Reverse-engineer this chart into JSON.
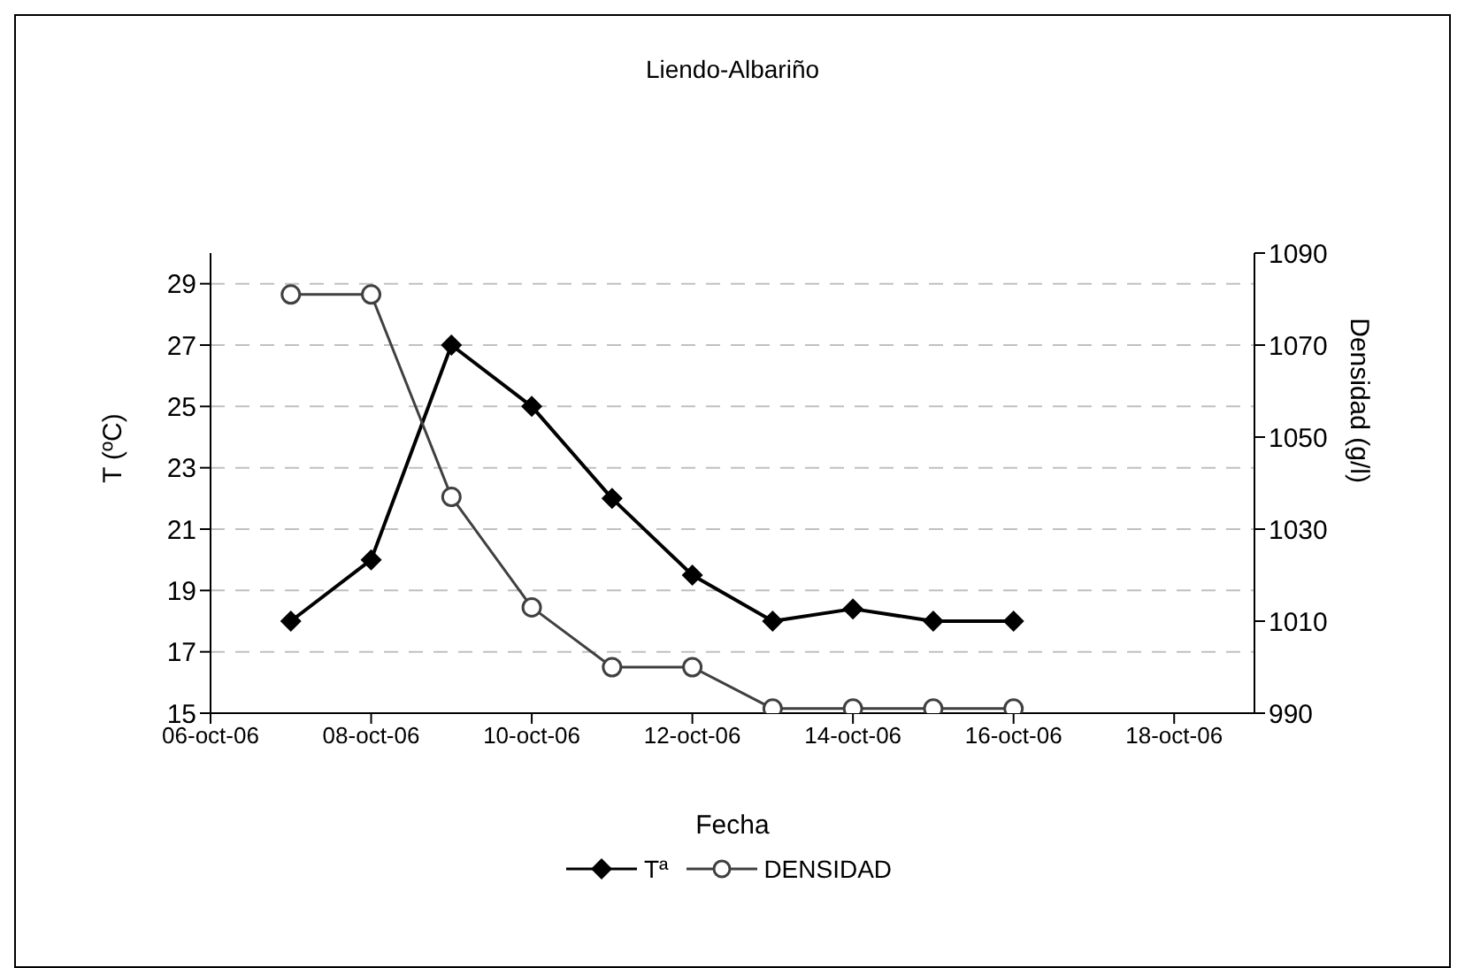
{
  "chart_data": {
    "type": "line",
    "title": "Liendo-Albariño",
    "xlabel": "Fecha",
    "ylabel": "T (ºC)",
    "y2label": "Densidad (g/l)",
    "x": [
      "--10-07",
      "--10-08",
      "--10-09",
      "--10-10",
      "--10-11",
      "--10-12",
      "--10-13",
      "--10-14",
      "--10-15",
      "--10-16"
    ],
    "xlim": [
      "--10-06",
      "--10-19"
    ],
    "xticks": [
      {
        "value": "--10-06",
        "label": "06-oct-06"
      },
      {
        "value": "--10-08",
        "label": "08-oct-06"
      },
      {
        "value": "--10-10",
        "label": "10-oct-06"
      },
      {
        "value": "--10-12",
        "label": "12-oct-06"
      },
      {
        "value": "--10-14",
        "label": "14-oct-06"
      },
      {
        "value": "--10-16",
        "label": "16-oct-06"
      },
      {
        "value": "--10-18",
        "label": "18-oct-06"
      }
    ],
    "ylim": [
      15,
      30
    ],
    "yticks": [
      15,
      17,
      19,
      21,
      23,
      25,
      27,
      29
    ],
    "y2lim": [
      990,
      1090
    ],
    "y2ticks": [
      990,
      1010,
      1030,
      1050,
      1070,
      1090
    ],
    "series": [
      {
        "name": "Tª",
        "color": "#000000",
        "marker": "diamond",
        "values": [
          18,
          20,
          27,
          25,
          22,
          19.5,
          18,
          18.4,
          18,
          18
        ]
      },
      {
        "name": "DENSIDAD",
        "color": "#404040",
        "marker": "circle",
        "axis": "y2",
        "values": [
          1081,
          1081,
          1037,
          1013,
          1000,
          1000,
          991,
          991,
          991,
          991
        ]
      }
    ],
    "grid": "y",
    "line_style": "solid",
    "legend": "bottom"
  }
}
